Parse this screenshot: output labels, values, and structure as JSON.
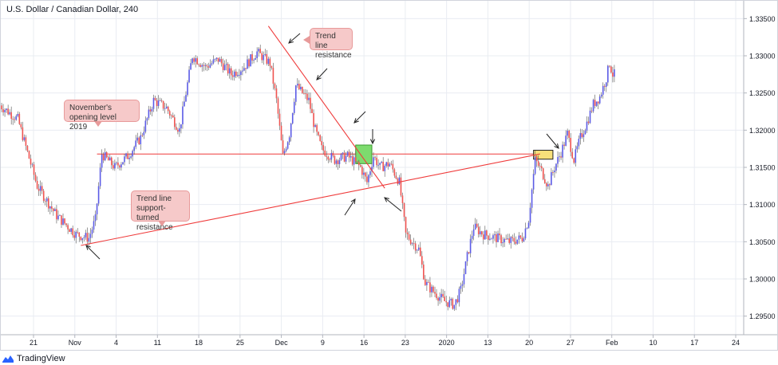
{
  "header": {
    "symbol_title": "U.S. Dollar / Canadian Dollar, 240"
  },
  "footer": {
    "brand": "TradingView",
    "brand_icon": "tradingview-logo-icon"
  },
  "colors": {
    "up": "#5b5be6",
    "down": "#ef5350",
    "line": "#ef3b3b",
    "grid": "#e9ecf2",
    "green_box": "#7ddb6e",
    "yellow_box": "#f7e07a"
  },
  "annotations": {
    "nov_open": "November's opening level 2019",
    "trend_resistance": "Trend line resistance",
    "support_turned": "Trend line support-turned resistance"
  },
  "chart_data": {
    "type": "candlestick",
    "title": "U.S. Dollar / Canadian Dollar, 240",
    "ylim": [
      1.2925,
      1.3375
    ],
    "y_ticks": [
      "1.33500",
      "1.33000",
      "1.32500",
      "1.32000",
      "1.31500",
      "1.31000",
      "1.30500",
      "1.30000",
      "1.29500"
    ],
    "x_ticks": [
      "21",
      "Nov",
      "4",
      "11",
      "18",
      "25",
      "Dec",
      "9",
      "16",
      "23",
      "2020",
      "13",
      "20",
      "27",
      "Feb",
      "10",
      "17",
      "24"
    ],
    "grid": true,
    "price_path": [
      [
        0,
        1.3235
      ],
      [
        6,
        1.3215
      ],
      [
        12,
        1.3125
      ],
      [
        18,
        1.3085
      ],
      [
        24,
        1.306
      ],
      [
        28,
        1.3055
      ],
      [
        30,
        1.308
      ],
      [
        32,
        1.3168
      ],
      [
        36,
        1.315
      ],
      [
        40,
        1.3165
      ],
      [
        44,
        1.319
      ],
      [
        48,
        1.324
      ],
      [
        52,
        1.323
      ],
      [
        56,
        1.32
      ],
      [
        60,
        1.33
      ],
      [
        64,
        1.3285
      ],
      [
        68,
        1.3295
      ],
      [
        72,
        1.3275
      ],
      [
        76,
        1.3285
      ],
      [
        80,
        1.3305
      ],
      [
        84,
        1.329
      ],
      [
        86,
        1.324
      ],
      [
        88,
        1.3165
      ],
      [
        90,
        1.3195
      ],
      [
        92,
        1.326
      ],
      [
        94,
        1.325
      ],
      [
        96,
        1.324
      ],
      [
        98,
        1.32
      ],
      [
        100,
        1.3175
      ],
      [
        104,
        1.316
      ],
      [
        108,
        1.3165
      ],
      [
        112,
        1.315
      ],
      [
        114,
        1.313
      ],
      [
        116,
        1.3165
      ],
      [
        118,
        1.315
      ],
      [
        121,
        1.3155
      ],
      [
        124,
        1.313
      ],
      [
        126,
        1.306
      ],
      [
        130,
        1.304
      ],
      [
        132,
        1.2995
      ],
      [
        134,
        1.2985
      ],
      [
        138,
        1.297
      ],
      [
        141,
        1.2965
      ],
      [
        143,
        1.2985
      ],
      [
        145,
        1.303
      ],
      [
        147,
        1.307
      ],
      [
        150,
        1.306
      ],
      [
        154,
        1.3055
      ],
      [
        158,
        1.305
      ],
      [
        162,
        1.3055
      ],
      [
        164,
        1.308
      ],
      [
        166,
        1.316
      ],
      [
        168,
        1.3145
      ],
      [
        170,
        1.3125
      ],
      [
        172,
        1.315
      ],
      [
        174,
        1.317
      ],
      [
        176,
        1.3195
      ],
      [
        178,
        1.316
      ],
      [
        180,
        1.319
      ],
      [
        182,
        1.321
      ],
      [
        184,
        1.3235
      ],
      [
        186,
        1.3245
      ],
      [
        188,
        1.327
      ],
      [
        189,
        1.329
      ],
      [
        190,
        1.3275
      ]
    ],
    "horizontal_lines": [
      {
        "name": "November's opening level 2019",
        "y": 1.3168
      }
    ],
    "trend_lines": [
      {
        "name": "Trend line resistance",
        "from": [
          83,
          1.334
        ],
        "to": [
          119,
          1.3122
        ]
      },
      {
        "name": "Trend line support-turned resistance",
        "from": [
          25,
          1.3045
        ],
        "to": [
          167,
          1.3168
        ]
      }
    ],
    "highlight_boxes": [
      {
        "color": "green",
        "x": [
          110,
          115
        ],
        "y": [
          1.3155,
          1.318
        ]
      },
      {
        "color": "yellow",
        "x": [
          165,
          171
        ],
        "y": [
          1.3161,
          1.3173
        ]
      }
    ],
    "x_domain": [
      0,
      230
    ]
  }
}
